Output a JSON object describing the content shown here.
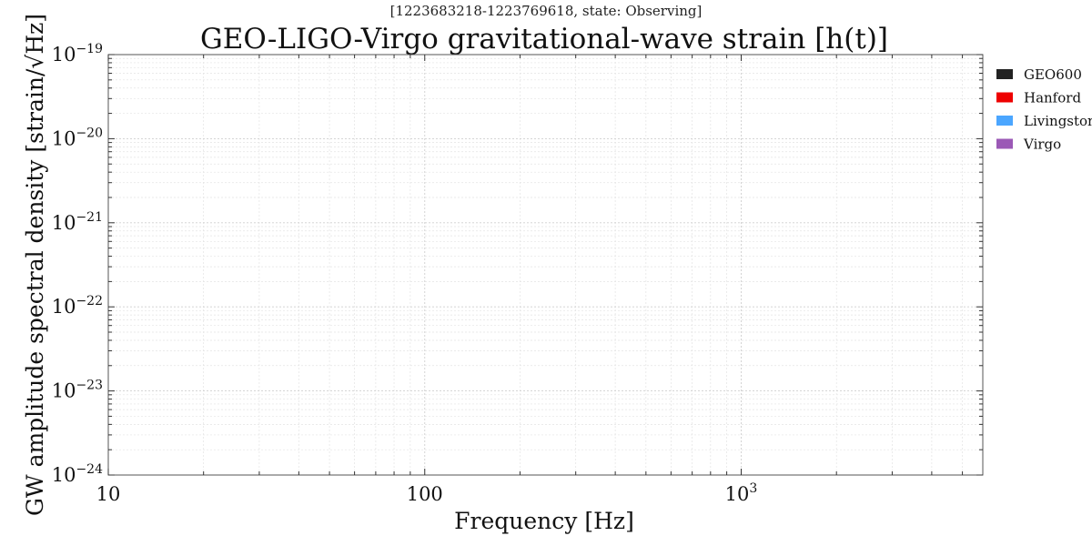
{
  "chart_data": {
    "type": "line",
    "subtitle": "[1223683218-1223769618, state: Observing]",
    "title": "GEO-LIGO-Virgo gravitational-wave strain [h(t)]",
    "xlabel": "Frequency [Hz]",
    "ylabel": "GW amplitude spectral density [strain/√Hz]",
    "xscale": "log",
    "yscale": "log",
    "xlim": [
      10,
      5800
    ],
    "ylim": [
      1e-24,
      1e-19
    ],
    "x_ticks": [
      {
        "value": 10,
        "label": "10"
      },
      {
        "value": 100,
        "label": "100"
      },
      {
        "value": 1000,
        "label_base": "10",
        "label_exp": "3"
      }
    ],
    "y_ticks": [
      {
        "value": 1e-19,
        "label_base": "10",
        "label_exp": "−19"
      },
      {
        "value": 1e-20,
        "label_base": "10",
        "label_exp": "−20"
      },
      {
        "value": 1e-21,
        "label_base": "10",
        "label_exp": "−21"
      },
      {
        "value": 1e-22,
        "label_base": "10",
        "label_exp": "−22"
      },
      {
        "value": 1e-23,
        "label_base": "10",
        "label_exp": "−23"
      },
      {
        "value": 1e-24,
        "label_base": "10",
        "label_exp": "−24"
      }
    ],
    "grid": true,
    "legend_position": "outside-right",
    "series": [
      {
        "name": "GEO600",
        "color": "#222222",
        "x": [],
        "y": []
      },
      {
        "name": "Hanford",
        "color": "#ee0000",
        "x": [],
        "y": []
      },
      {
        "name": "Livingston",
        "color": "#4ba6ff",
        "x": [],
        "y": []
      },
      {
        "name": "Virgo",
        "color": "#9b59b6",
        "x": [],
        "y": []
      }
    ]
  }
}
